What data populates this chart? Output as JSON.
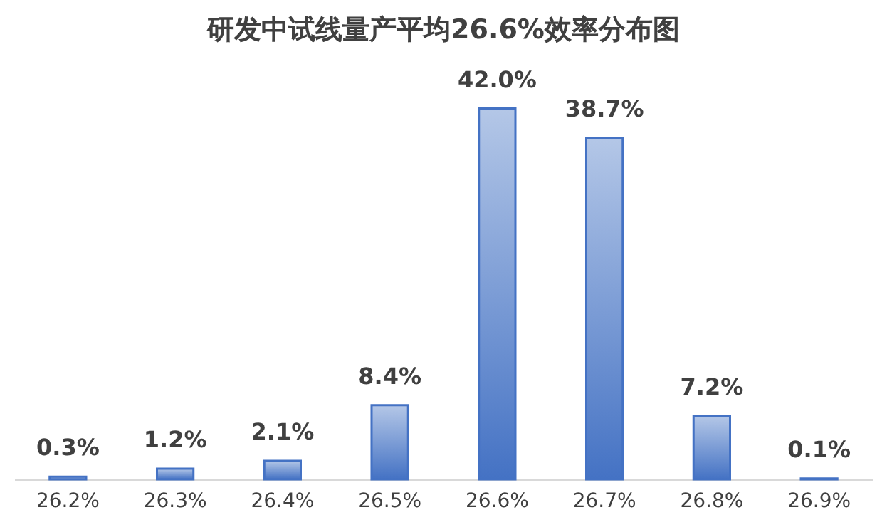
{
  "chart_data": {
    "type": "bar",
    "title": "研发中试线量产平均26.6%效率分布图",
    "categories": [
      "26.2%",
      "26.3%",
      "26.4%",
      "26.5%",
      "26.6%",
      "26.7%",
      "26.8%",
      "26.9%"
    ],
    "values": [
      0.3,
      1.2,
      2.1,
      8.4,
      42.0,
      38.7,
      7.2,
      0.1
    ],
    "value_labels": [
      "0.3%",
      "1.2%",
      "2.1%",
      "8.4%",
      "42.0%",
      "38.7%",
      "7.2%",
      "0.1%"
    ],
    "color": "#4472c4",
    "grid": false,
    "tick_labels": "x"
  }
}
